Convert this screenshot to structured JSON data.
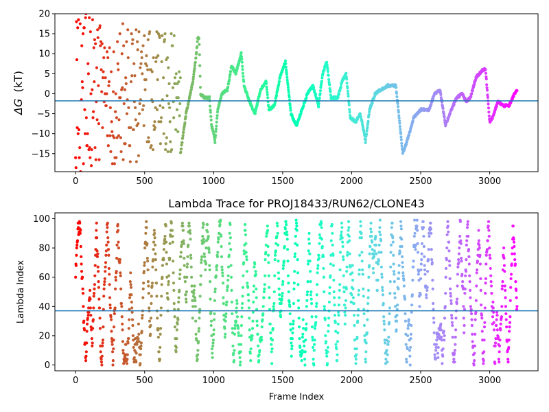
{
  "chart_data": [
    {
      "type": "scatter",
      "title": "",
      "xlabel": "",
      "ylabel_symbol": "ΔG",
      "ylabel_unit": "(kT)",
      "xlim": [
        -150,
        3350
      ],
      "ylim": [
        -19.5,
        20
      ],
      "xticks": [
        0,
        500,
        1000,
        1500,
        2000,
        2500,
        3000
      ],
      "yticks": [
        -15,
        -10,
        -5,
        0,
        5,
        10,
        15,
        20
      ],
      "hline": -1.8,
      "line_color": "#1f77b4",
      "colormap": "rainbow_r",
      "n_frames": 3200,
      "random_phase_end": 760,
      "trace_anchors": [
        [
          760,
          -15
        ],
        [
          800,
          -5
        ],
        [
          850,
          3
        ],
        [
          875,
          10
        ],
        [
          885,
          14
        ],
        [
          895,
          14
        ],
        [
          905,
          0
        ],
        [
          930,
          -1
        ],
        [
          970,
          -1
        ],
        [
          985,
          -8
        ],
        [
          1000,
          -10
        ],
        [
          1010,
          -12
        ],
        [
          1030,
          -4
        ],
        [
          1060,
          0
        ],
        [
          1100,
          1
        ],
        [
          1130,
          7
        ],
        [
          1160,
          5
        ],
        [
          1200,
          10
        ],
        [
          1220,
          2
        ],
        [
          1260,
          -2
        ],
        [
          1300,
          -5
        ],
        [
          1340,
          1
        ],
        [
          1380,
          3
        ],
        [
          1400,
          -4
        ],
        [
          1440,
          -3
        ],
        [
          1480,
          4
        ],
        [
          1520,
          8
        ],
        [
          1560,
          -5
        ],
        [
          1600,
          -8
        ],
        [
          1640,
          -4
        ],
        [
          1680,
          0
        ],
        [
          1720,
          2
        ],
        [
          1760,
          -3
        ],
        [
          1790,
          5
        ],
        [
          1820,
          8
        ],
        [
          1850,
          -1
        ],
        [
          1900,
          -1
        ],
        [
          1930,
          3
        ],
        [
          1960,
          5
        ],
        [
          1990,
          -6
        ],
        [
          2030,
          -7
        ],
        [
          2060,
          -5
        ],
        [
          2080,
          -8
        ],
        [
          2100,
          -12
        ],
        [
          2130,
          -4
        ],
        [
          2170,
          0
        ],
        [
          2210,
          1
        ],
        [
          2260,
          2
        ],
        [
          2320,
          2
        ],
        [
          2350,
          -8
        ],
        [
          2370,
          -15
        ],
        [
          2400,
          -12
        ],
        [
          2450,
          -6
        ],
        [
          2500,
          -4
        ],
        [
          2560,
          -4
        ],
        [
          2600,
          0
        ],
        [
          2640,
          1
        ],
        [
          2680,
          -8
        ],
        [
          2710,
          -5
        ],
        [
          2760,
          -1
        ],
        [
          2800,
          0
        ],
        [
          2830,
          -2
        ],
        [
          2860,
          -1
        ],
        [
          2900,
          4
        ],
        [
          2950,
          6
        ],
        [
          2970,
          6
        ],
        [
          3000,
          -7
        ],
        [
          3020,
          -6
        ],
        [
          3060,
          -2
        ],
        [
          3100,
          -3
        ],
        [
          3140,
          -3
        ],
        [
          3180,
          0
        ],
        [
          3200,
          1
        ]
      ]
    },
    {
      "type": "scatter",
      "title": "Lambda Trace for PROJ18433/RUN62/CLONE43",
      "xlabel": "Frame Index",
      "ylabel": "Lambda Index",
      "xlim": [
        -150,
        3350
      ],
      "ylim": [
        -4,
        104
      ],
      "xticks": [
        0,
        500,
        1000,
        1500,
        2000,
        2500,
        3000
      ],
      "yticks": [
        0,
        20,
        40,
        60,
        80,
        100
      ],
      "hline": 37,
      "line_color": "#1f77b4",
      "colormap": "rainbow_r",
      "n_frames": 3200,
      "lambda_range": [
        0,
        99
      ]
    }
  ]
}
